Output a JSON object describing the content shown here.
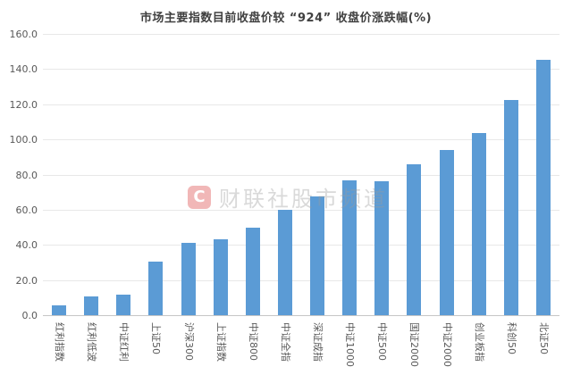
{
  "watermark": {
    "logo_letter": "C",
    "logo_color": "#db4b4b",
    "text": "财联社股市频道"
  },
  "chart_data": {
    "type": "bar",
    "title": "市场主要指数目前收盘价较 “924” 收盘价涨跌幅(%)",
    "categories": [
      "红利指数",
      "红利低波",
      "中证红利",
      "上证50",
      "沪深300",
      "上证指数",
      "中证800",
      "中证全指",
      "深证成指",
      "中证1000",
      "中证500",
      "国证2000",
      "中证2000",
      "创业板指",
      "科创50",
      "北证50"
    ],
    "values": [
      5.8,
      10.8,
      11.8,
      30.5,
      41.0,
      43.4,
      49.9,
      60.0,
      67.8,
      76.8,
      76.1,
      85.8,
      93.8,
      103.5,
      122.5,
      145.5
    ],
    "xlabel": "",
    "ylabel": "",
    "ylim": [
      0,
      160
    ],
    "yticks": [
      "0.0",
      "20.0",
      "40.0",
      "60.0",
      "80.0",
      "100.0",
      "120.0",
      "140.0",
      "160.0"
    ],
    "bar_color": "#5b9bd5",
    "grid": true,
    "legend_position": "none"
  }
}
